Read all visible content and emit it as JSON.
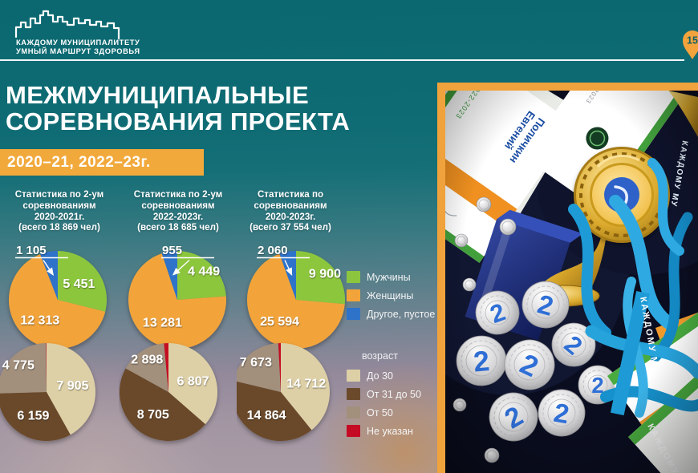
{
  "slide": {
    "logo": {
      "line1": "КАЖДОМУ МУНИЦИПАЛИТЕТУ",
      "line2": "УМНЫЙ МАРШРУТ ЗДОРОВЬЯ"
    },
    "page_pin": "15",
    "title_line1": "МЕЖМУНИЦИПАЛЬНЫЕ",
    "title_line2": "СОРЕВНОВАНИЯ ПРОЕКТА",
    "banner": "2020–21, 2022–23г."
  },
  "chart_data": {
    "type": "pie",
    "columns": [
      {
        "header_lines": [
          "Статистика по 2-ум",
          "соревнованиям",
          "2020-2021г.",
          "(всего 18 869 чел)"
        ],
        "total": 18869,
        "gender_slices": [
          {
            "name": "Мужчины",
            "value": 5451,
            "text": "5 451",
            "color": "#8cc63e",
            "display": "inside"
          },
          {
            "name": "Женщины",
            "value": 12313,
            "text": "12 313",
            "color": "#f2a43a",
            "display": "inside"
          },
          {
            "name": "Другое, пустое",
            "value": 1105,
            "text": "1 105",
            "color": "#2e73c9",
            "display": "callout"
          }
        ],
        "age_slices": [
          {
            "name": "До 30",
            "value": 7905,
            "text": "7 905",
            "color": "#ded0a6",
            "display": "inside"
          },
          {
            "name": "От 31 до 50",
            "value": 6159,
            "text": "6 159",
            "color": "#6b4a2c",
            "display": "inside"
          },
          {
            "name": "От 50",
            "value": 4775,
            "text": "4 775",
            "color": "#a28f7c",
            "display": "inside"
          },
          {
            "name": "Не указан",
            "value": 30,
            "text": "",
            "color": "#c50b24",
            "display": "none"
          }
        ]
      },
      {
        "header_lines": [
          "Статистика по 2-ум",
          "соревнованиям",
          "2022-2023г.",
          "(всего 18 685 чел)"
        ],
        "total": 18685,
        "gender_slices": [
          {
            "name": "Мужчины",
            "value": 4449,
            "text": "4 449",
            "color": "#8cc63e",
            "display": "inside"
          },
          {
            "name": "Женщины",
            "value": 13281,
            "text": "13 281",
            "color": "#f2a43a",
            "display": "inside"
          },
          {
            "name": "Другое, пустое",
            "value": 955,
            "text": "955",
            "color": "#2e73c9",
            "display": "callout"
          }
        ],
        "age_slices": [
          {
            "name": "До 30",
            "value": 6807,
            "text": "6 807",
            "color": "#ded0a6",
            "display": "inside"
          },
          {
            "name": "От 31 до 50",
            "value": 8705,
            "text": "8 705",
            "color": "#6b4a2c",
            "display": "inside"
          },
          {
            "name": "От 50",
            "value": 2898,
            "text": "2 898",
            "color": "#a28f7c",
            "display": "inside"
          },
          {
            "name": "Не указан",
            "value": 275,
            "text": "",
            "color": "#c50b24",
            "display": "none"
          }
        ]
      },
      {
        "header_lines": [
          "Статистика по",
          "соревнованиям",
          "2020-2023г.",
          "(всего 37 554 чел)"
        ],
        "total": 37554,
        "gender_slices": [
          {
            "name": "Мужчины",
            "value": 9900,
            "text": "9 900",
            "color": "#8cc63e",
            "display": "inside"
          },
          {
            "name": "Женщины",
            "value": 25594,
            "text": "25 594",
            "color": "#f2a43a",
            "display": "inside"
          },
          {
            "name": "Другое, пустое",
            "value": 2060,
            "text": "2 060",
            "color": "#2e73c9",
            "display": "callout"
          }
        ],
        "age_slices": [
          {
            "name": "До 30",
            "value": 14712,
            "text": "14 712",
            "color": "#ded0a6",
            "display": "inside"
          },
          {
            "name": "От 31 до 50",
            "value": 14864,
            "text": "14 864",
            "color": "#6b4a2c",
            "display": "inside"
          },
          {
            "name": "От 50",
            "value": 7673,
            "text": "7 673",
            "color": "#a28f7c",
            "display": "inside"
          },
          {
            "name": "Не указан",
            "value": 305,
            "text": "",
            "color": "#c50b24",
            "display": "none"
          }
        ]
      }
    ],
    "gender_legend": [
      {
        "label": "Мужчины",
        "color": "#8cc63e"
      },
      {
        "label": "Женщины",
        "color": "#f2a43a"
      },
      {
        "label": "Другое, пустое",
        "color": "#2e73c9"
      }
    ],
    "age_legend_title": "возраст",
    "age_legend": [
      {
        "label": "До 30",
        "color": "#ded0a6"
      },
      {
        "label": "От 31 до 50",
        "color": "#6b4a2c"
      },
      {
        "label": "От 50",
        "color": "#a28f7c"
      },
      {
        "label": "Не указан",
        "color": "#c50b24"
      }
    ]
  },
  "photo": {
    "certificate_year": "2022-2023",
    "certificate_name_line1": "Поличкин",
    "certificate_name_line2": "Евгений",
    "ribbon_text": "КАЖДОМУ МУ",
    "medal_number": "2",
    "frame_color": "#f0a23c"
  }
}
